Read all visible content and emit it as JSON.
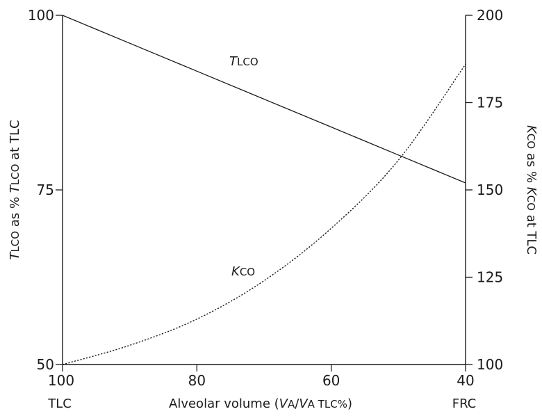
{
  "chart_data": {
    "type": "line",
    "x": [
      100,
      90,
      80,
      70,
      60,
      50,
      40
    ],
    "xlim": [
      100,
      40
    ],
    "x_ticks": [
      "100",
      "80",
      "60",
      "40"
    ],
    "x_end_labels": {
      "left": "TLC",
      "right": "FRC"
    },
    "xlabel": {
      "pre": "Alveolar volume (",
      "v1": "V",
      "s1": "A",
      "slash": "/",
      "v2": "V",
      "s2": "A TLC%",
      "post": ")"
    },
    "y_left": {
      "ylim": [
        50,
        100
      ],
      "ticks": [
        "50",
        "75",
        "100"
      ],
      "label": {
        "t1": "T",
        "s1": "LCO",
        "mid": " as % ",
        "t2": "T",
        "s2": "LCO",
        "post": " at TLC"
      }
    },
    "y_right": {
      "ylim": [
        100,
        200
      ],
      "ticks": [
        "100",
        "125",
        "150",
        "175",
        "200"
      ],
      "label": {
        "k1": "K",
        "s1": "CO",
        "mid": " as % ",
        "k2": "K",
        "s2": "CO",
        "post": " at TLC"
      }
    },
    "series": [
      {
        "name": {
          "it": "T",
          "rest": "LCO"
        },
        "axis": "left",
        "style": "solid",
        "values": [
          100,
          96,
          92,
          88,
          84,
          80,
          76
        ]
      },
      {
        "name": {
          "it": "K",
          "rest": "CO"
        },
        "axis": "right",
        "style": "dotted",
        "values": [
          100,
          105.5,
          113,
          124,
          139,
          158.5,
          186
        ]
      }
    ],
    "grid": false,
    "legend": "inline-labels"
  }
}
